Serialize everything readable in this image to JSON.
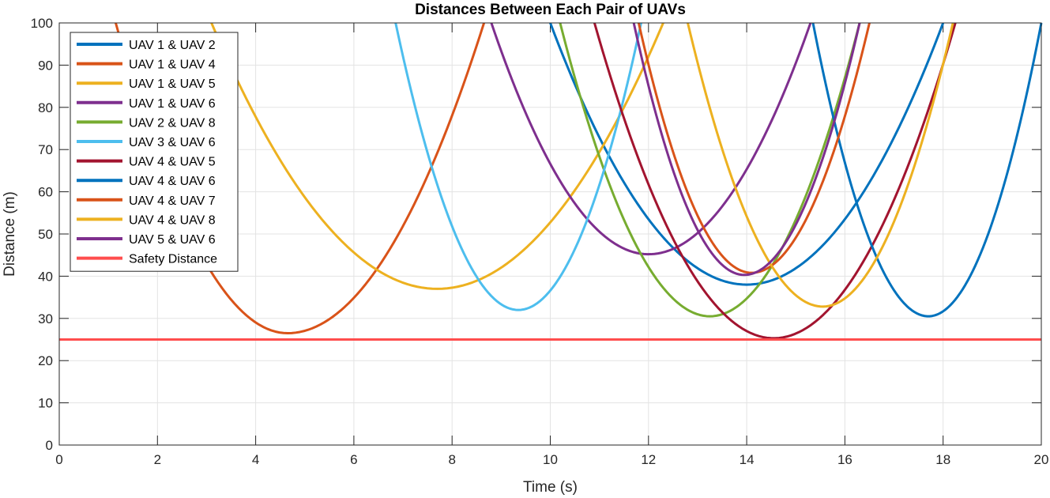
{
  "chart_data": {
    "type": "line",
    "title": "Distances Between Each Pair of UAVs",
    "xlabel": "Time (s)",
    "ylabel": "Distance (m)",
    "xlim": [
      0,
      20
    ],
    "ylim": [
      0,
      100
    ],
    "xticks": [
      0,
      2,
      4,
      6,
      8,
      10,
      12,
      14,
      16,
      18,
      20
    ],
    "yticks": [
      0,
      10,
      20,
      30,
      40,
      50,
      60,
      70,
      80,
      90,
      100
    ],
    "grid": true,
    "legend_location": "top-left",
    "series": [
      {
        "name": "UAV 1 & UAV 2",
        "color": "#0072BD",
        "min_x": 14.0,
        "min_y": 38.0,
        "x": [
          10.0,
          14.0,
          18.0
        ],
        "y": [
          100,
          38.0,
          100
        ]
      },
      {
        "name": "UAV 1 & UAV 4",
        "color": "#D95319",
        "min_x": 4.65,
        "min_y": 26.5,
        "x": [
          1.15,
          4.65,
          8.65
        ],
        "y": [
          100,
          26.5,
          100
        ]
      },
      {
        "name": "UAV 1 & UAV 5",
        "color": "#EDB120",
        "min_x": 7.7,
        "min_y": 37.0,
        "x": [
          3.1,
          7.7,
          12.3
        ],
        "y": [
          100,
          37.0,
          100
        ]
      },
      {
        "name": "UAV 1 & UAV 6",
        "color": "#7E2F8E",
        "min_x": 12.0,
        "min_y": 45.2,
        "x": [
          8.8,
          12.0,
          15.3
        ],
        "y": [
          100,
          45.2,
          100
        ]
      },
      {
        "name": "UAV 2 & UAV 8",
        "color": "#77AC30",
        "min_x": 13.25,
        "min_y": 30.5,
        "x": [
          10.2,
          13.25,
          16.3
        ],
        "y": [
          100,
          30.5,
          100
        ]
      },
      {
        "name": "UAV 3 & UAV 6",
        "color": "#4DBEEE",
        "min_x": 9.35,
        "min_y": 32.0,
        "x": [
          6.85,
          9.35,
          11.85
        ],
        "y": [
          100,
          32.0,
          100
        ]
      },
      {
        "name": "UAV 4 & UAV 5",
        "color": "#A2142F",
        "min_x": 14.55,
        "min_y": 25.3,
        "x": [
          10.9,
          14.55,
          18.25
        ],
        "y": [
          100,
          25.3,
          100
        ]
      },
      {
        "name": "UAV 4 & UAV 6",
        "color": "#0072BD",
        "min_x": 17.7,
        "min_y": 30.5,
        "x": [
          15.35,
          17.7,
          20.0
        ],
        "y": [
          100,
          30.5,
          100
        ]
      },
      {
        "name": "UAV 4 & UAV 7",
        "color": "#D95319",
        "min_x": 14.1,
        "min_y": 40.8,
        "x": [
          11.8,
          14.1,
          16.5
        ],
        "y": [
          100,
          40.8,
          100
        ]
      },
      {
        "name": "UAV 4 & UAV 8",
        "color": "#EDB120",
        "min_x": 15.55,
        "min_y": 32.8,
        "x": [
          12.8,
          15.55,
          18.2
        ],
        "y": [
          100,
          32.8,
          100
        ]
      },
      {
        "name": "UAV 5 & UAV 6",
        "color": "#7E2F8E",
        "min_x": 13.95,
        "min_y": 40.3,
        "x": [
          11.7,
          13.95,
          16.3
        ],
        "y": [
          100,
          40.3,
          100
        ]
      },
      {
        "name": "Safety Distance",
        "color": "#FF4D4D",
        "constant": 25,
        "x": [
          0,
          20
        ],
        "y": [
          25,
          25
        ]
      }
    ]
  }
}
